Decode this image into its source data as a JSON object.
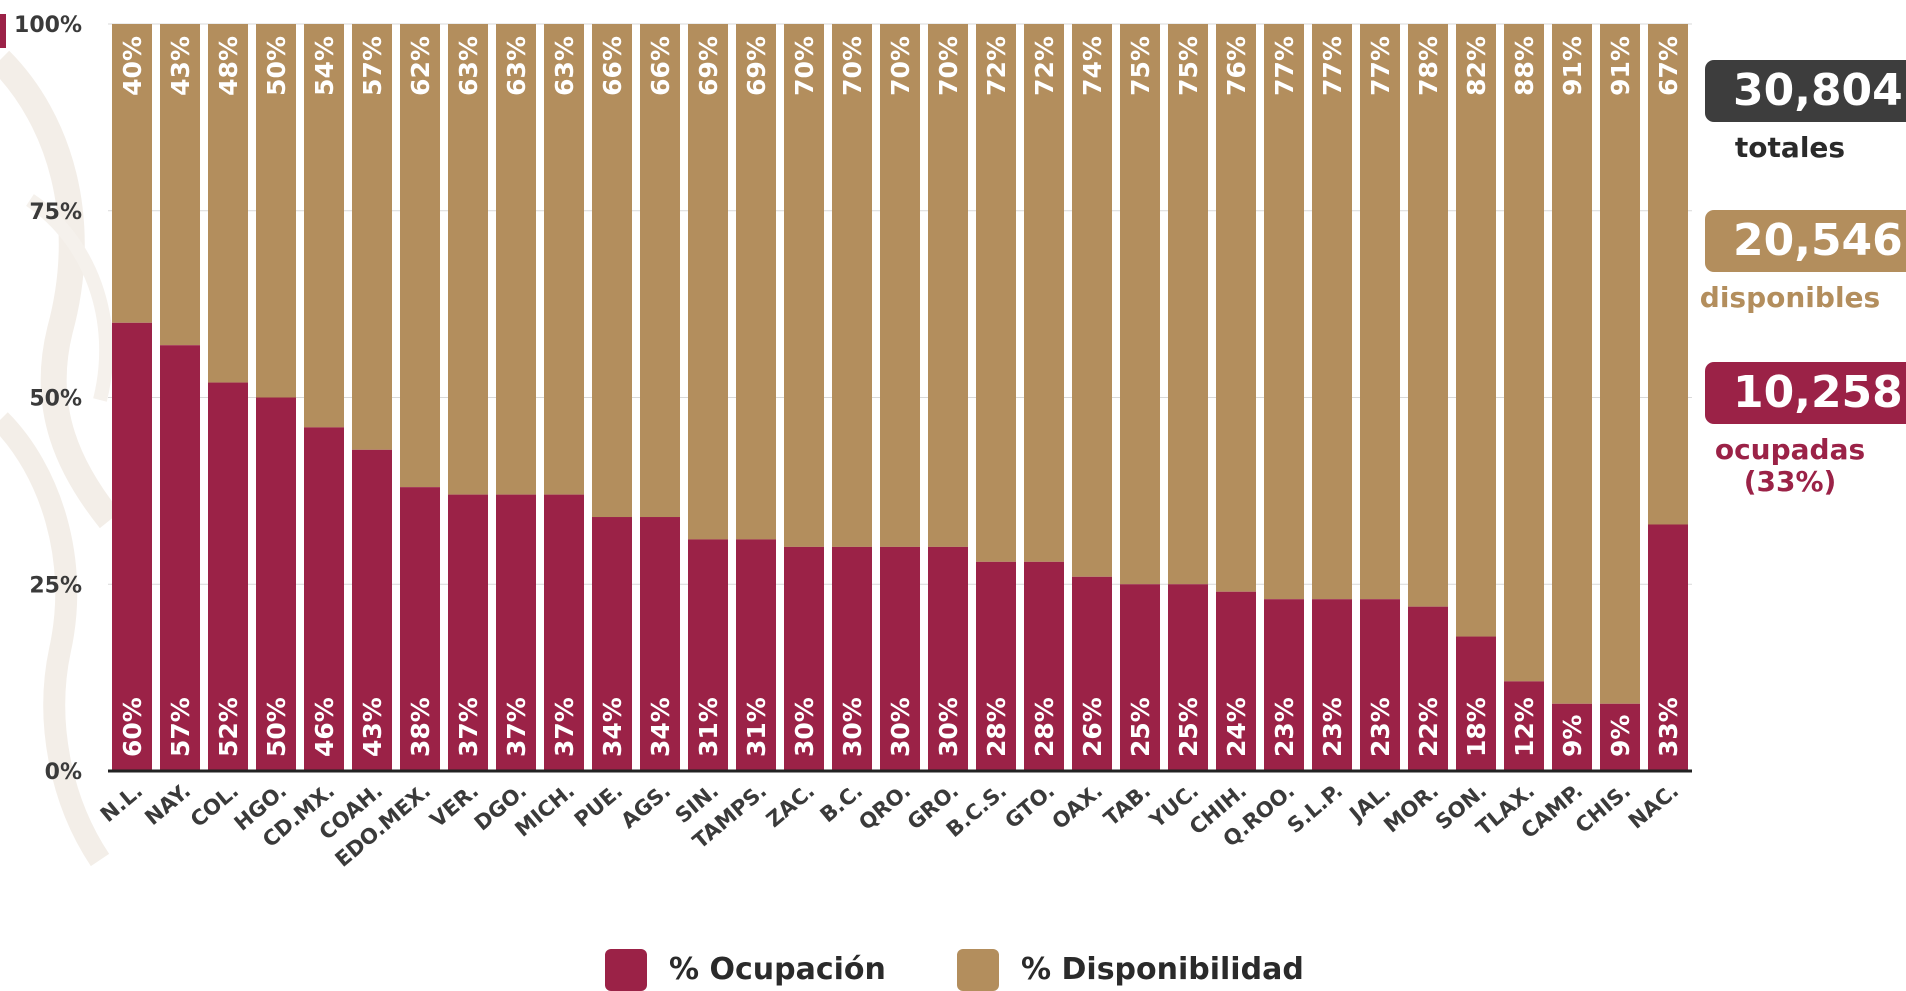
{
  "colors": {
    "ocupacion": "#9b2247",
    "disponibilidad": "#b38e5d",
    "totales_badge": "#3d3d3d",
    "axis": "#222222"
  },
  "chart_data": {
    "type": "bar",
    "stacked": true,
    "categories": [
      "N.L.",
      "NAY.",
      "COL.",
      "HGO.",
      "CD.MX.",
      "COAH.",
      "EDO.MEX.",
      "VER.",
      "DGO.",
      "MICH.",
      "PUE.",
      "AGS.",
      "SIN.",
      "TAMPS.",
      "ZAC.",
      "B.C.",
      "QRO.",
      "GRO.",
      "B.C.S.",
      "GTO.",
      "OAX.",
      "TAB.",
      "YUC.",
      "CHIH.",
      "Q.ROO.",
      "S.L.P.",
      "JAL.",
      "MOR.",
      "SON.",
      "TLAX.",
      "CAMP.",
      "CHIS.",
      "NAC."
    ],
    "series": [
      {
        "name": "% Ocupación",
        "color": "#9b2247",
        "values": [
          60,
          57,
          52,
          50,
          46,
          43,
          38,
          37,
          37,
          37,
          34,
          34,
          31,
          31,
          30,
          30,
          30,
          30,
          28,
          28,
          26,
          25,
          25,
          24,
          23,
          23,
          23,
          22,
          18,
          12,
          9,
          9,
          33
        ],
        "labels": [
          "60%",
          "57%",
          "52%",
          "50%",
          "46%",
          "43%",
          "38%",
          "37%",
          "37%",
          "37%",
          "34%",
          "34%",
          "31%",
          "31%",
          "30%",
          "30%",
          "30%",
          "30%",
          "28%",
          "28%",
          "26%",
          "25%",
          "25%",
          "24%",
          "23%",
          "23%",
          "23%",
          "22%",
          "18%",
          "12%",
          "9%",
          "9%",
          "33%"
        ]
      },
      {
        "name": "% Disponibilidad",
        "color": "#b38e5d",
        "values": [
          40,
          43,
          48,
          50,
          54,
          57,
          62,
          63,
          63,
          63,
          66,
          66,
          69,
          69,
          70,
          70,
          70,
          70,
          72,
          72,
          74,
          75,
          75,
          76,
          77,
          77,
          77,
          78,
          82,
          88,
          91,
          91,
          67
        ],
        "labels": [
          "40%",
          "43%",
          "48%",
          "50%",
          "54%",
          "57%",
          "62%",
          "63%",
          "63%",
          "63%",
          "66%",
          "66%",
          "69%",
          "69%",
          "70%",
          "70%",
          "70%",
          "70%",
          "72%",
          "72%",
          "74%",
          "75%",
          "75%",
          "76%",
          "77%",
          "77%",
          "77%",
          "78%",
          "82%",
          "88%",
          "91%",
          "91%",
          "67%"
        ]
      }
    ],
    "ylim": [
      0,
      100
    ],
    "yticks": [
      "0%",
      "25%",
      "50%",
      "75%",
      "100%"
    ],
    "ytick_values": [
      0,
      25,
      50,
      75,
      100
    ],
    "grid": true,
    "legend": "bottom-center"
  },
  "summary": {
    "totales": {
      "value": "30,804",
      "caption": "totales"
    },
    "disponibles": {
      "value": "20,546",
      "caption": "disponibles"
    },
    "ocupadas": {
      "value": "10,258",
      "caption_line1": "ocupadas",
      "caption_line2": "(33%)"
    }
  },
  "legend": {
    "ocupacion_label": "% Ocupación",
    "disponibilidad_label": "% Disponibilidad"
  }
}
